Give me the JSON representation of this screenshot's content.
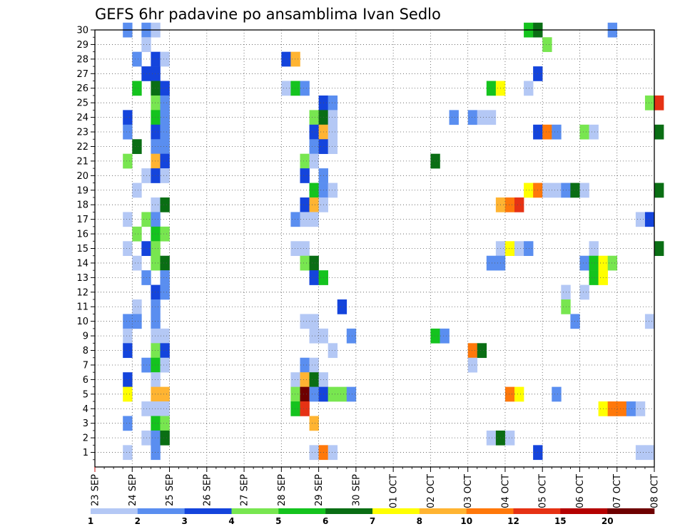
{
  "chart_data": {
    "type": "heatmap",
    "title": "GEFS 6hr padavine po ansamblima Ivan Sedlo",
    "x_tick_labels": [
      "23 SEP",
      "24 SEP",
      "25 SEP",
      "26 SEP",
      "27 SEP",
      "28 SEP",
      "29 SEP",
      "30 SEP",
      "01 OCT",
      "02 OCT",
      "03 OCT",
      "04 OCT",
      "05 OCT",
      "06 OCT",
      "07 OCT",
      "08 OCT"
    ],
    "y_tick_labels": [
      "1",
      "2",
      "3",
      "4",
      "5",
      "6",
      "7",
      "8",
      "9",
      "10",
      "11",
      "12",
      "13",
      "14",
      "15",
      "16",
      "17",
      "18",
      "19",
      "20",
      "21",
      "22",
      "23",
      "24",
      "25",
      "26",
      "27",
      "28",
      "29",
      "30"
    ],
    "y_range": [
      0,
      30
    ],
    "x_step": "6hr",
    "grid": true,
    "colorbar": {
      "labels": [
        "1",
        "2",
        "3",
        "4",
        "5",
        "6",
        "7",
        "8",
        "10",
        "12",
        "15",
        "20"
      ],
      "colors": [
        "#b4c8f5",
        "#5a8ef0",
        "#1444dc",
        "#78e650",
        "#14c31e",
        "#0a6e14",
        "#ffff00",
        "#ffb432",
        "#ff780a",
        "#e63214",
        "#b40000",
        "#6e0000"
      ]
    },
    "cells": [
      {
        "m": 30,
        "t": 3,
        "c": 2
      },
      {
        "m": 30,
        "t": 5,
        "c": 2
      },
      {
        "m": 30,
        "t": 6,
        "c": 1
      },
      {
        "m": 30,
        "t": 46,
        "c": 5
      },
      {
        "m": 30,
        "t": 47,
        "c": 6
      },
      {
        "m": 30,
        "t": 55,
        "c": 2
      },
      {
        "m": 29,
        "t": 5,
        "c": 1
      },
      {
        "m": 29,
        "t": 48,
        "c": 4
      },
      {
        "m": 28,
        "t": 4,
        "c": 2
      },
      {
        "m": 28,
        "t": 6,
        "c": 3
      },
      {
        "m": 28,
        "t": 7,
        "c": 1
      },
      {
        "m": 28,
        "t": 20,
        "c": 3
      },
      {
        "m": 28,
        "t": 21,
        "c": 8
      },
      {
        "m": 27,
        "t": 5,
        "c": 3
      },
      {
        "m": 27,
        "t": 6,
        "c": 3
      },
      {
        "m": 27,
        "t": 47,
        "c": 3
      },
      {
        "m": 26,
        "t": 4,
        "c": 5
      },
      {
        "m": 26,
        "t": 6,
        "c": 6
      },
      {
        "m": 26,
        "t": 7,
        "c": 3
      },
      {
        "m": 26,
        "t": 20,
        "c": 1
      },
      {
        "m": 26,
        "t": 21,
        "c": 5
      },
      {
        "m": 26,
        "t": 22,
        "c": 2
      },
      {
        "m": 26,
        "t": 42,
        "c": 5
      },
      {
        "m": 26,
        "t": 43,
        "c": 7
      },
      {
        "m": 26,
        "t": 46,
        "c": 1
      },
      {
        "m": 25,
        "t": 6,
        "c": 4
      },
      {
        "m": 25,
        "t": 7,
        "c": 2
      },
      {
        "m": 25,
        "t": 24,
        "c": 3
      },
      {
        "m": 25,
        "t": 25,
        "c": 2
      },
      {
        "m": 25,
        "t": 59,
        "c": 4
      },
      {
        "m": 25,
        "t": 60,
        "c": 10
      },
      {
        "m": 24,
        "t": 3,
        "c": 3
      },
      {
        "m": 24,
        "t": 6,
        "c": 5
      },
      {
        "m": 24,
        "t": 7,
        "c": 2
      },
      {
        "m": 24,
        "t": 23,
        "c": 4
      },
      {
        "m": 24,
        "t": 24,
        "c": 6
      },
      {
        "m": 24,
        "t": 25,
        "c": 1
      },
      {
        "m": 24,
        "t": 38,
        "c": 2
      },
      {
        "m": 24,
        "t": 40,
        "c": 2
      },
      {
        "m": 24,
        "t": 41,
        "c": 1
      },
      {
        "m": 24,
        "t": 42,
        "c": 1
      },
      {
        "m": 23,
        "t": 3,
        "c": 2
      },
      {
        "m": 23,
        "t": 6,
        "c": 3
      },
      {
        "m": 23,
        "t": 7,
        "c": 2
      },
      {
        "m": 23,
        "t": 23,
        "c": 3
      },
      {
        "m": 23,
        "t": 24,
        "c": 8
      },
      {
        "m": 23,
        "t": 25,
        "c": 1
      },
      {
        "m": 23,
        "t": 47,
        "c": 3
      },
      {
        "m": 23,
        "t": 48,
        "c": 9
      },
      {
        "m": 23,
        "t": 49,
        "c": 2
      },
      {
        "m": 23,
        "t": 52,
        "c": 4
      },
      {
        "m": 23,
        "t": 53,
        "c": 1
      },
      {
        "m": 23,
        "t": 60,
        "c": 6
      },
      {
        "m": 22,
        "t": 4,
        "c": 6
      },
      {
        "m": 22,
        "t": 6,
        "c": 2
      },
      {
        "m": 22,
        "t": 7,
        "c": 2
      },
      {
        "m": 22,
        "t": 23,
        "c": 2
      },
      {
        "m": 22,
        "t": 24,
        "c": 3
      },
      {
        "m": 22,
        "t": 25,
        "c": 1
      },
      {
        "m": 21,
        "t": 3,
        "c": 4
      },
      {
        "m": 21,
        "t": 6,
        "c": 8
      },
      {
        "m": 21,
        "t": 7,
        "c": 3
      },
      {
        "m": 21,
        "t": 22,
        "c": 4
      },
      {
        "m": 21,
        "t": 23,
        "c": 1
      },
      {
        "m": 21,
        "t": 36,
        "c": 6
      },
      {
        "m": 20,
        "t": 5,
        "c": 1
      },
      {
        "m": 20,
        "t": 6,
        "c": 3
      },
      {
        "m": 20,
        "t": 7,
        "c": 1
      },
      {
        "m": 20,
        "t": 22,
        "c": 3
      },
      {
        "m": 20,
        "t": 24,
        "c": 2
      },
      {
        "m": 19,
        "t": 4,
        "c": 1
      },
      {
        "m": 19,
        "t": 23,
        "c": 5
      },
      {
        "m": 19,
        "t": 24,
        "c": 2
      },
      {
        "m": 19,
        "t": 25,
        "c": 1
      },
      {
        "m": 19,
        "t": 46,
        "c": 7
      },
      {
        "m": 19,
        "t": 47,
        "c": 9
      },
      {
        "m": 19,
        "t": 48,
        "c": 1
      },
      {
        "m": 19,
        "t": 49,
        "c": 1
      },
      {
        "m": 19,
        "t": 50,
        "c": 2
      },
      {
        "m": 19,
        "t": 51,
        "c": 6
      },
      {
        "m": 19,
        "t": 52,
        "c": 1
      },
      {
        "m": 19,
        "t": 60,
        "c": 6
      },
      {
        "m": 18,
        "t": 6,
        "c": 1
      },
      {
        "m": 18,
        "t": 7,
        "c": 6
      },
      {
        "m": 18,
        "t": 22,
        "c": 3
      },
      {
        "m": 18,
        "t": 23,
        "c": 8
      },
      {
        "m": 18,
        "t": 24,
        "c": 1
      },
      {
        "m": 18,
        "t": 43,
        "c": 8
      },
      {
        "m": 18,
        "t": 44,
        "c": 9
      },
      {
        "m": 18,
        "t": 45,
        "c": 10
      },
      {
        "m": 17,
        "t": 3,
        "c": 1
      },
      {
        "m": 17,
        "t": 5,
        "c": 4
      },
      {
        "m": 17,
        "t": 6,
        "c": 2
      },
      {
        "m": 17,
        "t": 21,
        "c": 2
      },
      {
        "m": 17,
        "t": 22,
        "c": 1
      },
      {
        "m": 17,
        "t": 23,
        "c": 1
      },
      {
        "m": 17,
        "t": 58,
        "c": 1
      },
      {
        "m": 17,
        "t": 59,
        "c": 3
      },
      {
        "m": 16,
        "t": 4,
        "c": 4
      },
      {
        "m": 16,
        "t": 6,
        "c": 5
      },
      {
        "m": 16,
        "t": 7,
        "c": 4
      },
      {
        "m": 15,
        "t": 3,
        "c": 1
      },
      {
        "m": 15,
        "t": 5,
        "c": 3
      },
      {
        "m": 15,
        "t": 6,
        "c": 4
      },
      {
        "m": 15,
        "t": 21,
        "c": 1
      },
      {
        "m": 15,
        "t": 22,
        "c": 1
      },
      {
        "m": 15,
        "t": 43,
        "c": 1
      },
      {
        "m": 15,
        "t": 44,
        "c": 7
      },
      {
        "m": 15,
        "t": 45,
        "c": 1
      },
      {
        "m": 15,
        "t": 46,
        "c": 2
      },
      {
        "m": 15,
        "t": 53,
        "c": 1
      },
      {
        "m": 15,
        "t": 60,
        "c": 6
      },
      {
        "m": 14,
        "t": 4,
        "c": 1
      },
      {
        "m": 14,
        "t": 6,
        "c": 4
      },
      {
        "m": 14,
        "t": 7,
        "c": 6
      },
      {
        "m": 14,
        "t": 22,
        "c": 4
      },
      {
        "m": 14,
        "t": 23,
        "c": 6
      },
      {
        "m": 14,
        "t": 42,
        "c": 2
      },
      {
        "m": 14,
        "t": 43,
        "c": 2
      },
      {
        "m": 14,
        "t": 52,
        "c": 2
      },
      {
        "m": 14,
        "t": 53,
        "c": 5
      },
      {
        "m": 14,
        "t": 54,
        "c": 7
      },
      {
        "m": 14,
        "t": 55,
        "c": 4
      },
      {
        "m": 13,
        "t": 5,
        "c": 2
      },
      {
        "m": 13,
        "t": 7,
        "c": 2
      },
      {
        "m": 13,
        "t": 23,
        "c": 3
      },
      {
        "m": 13,
        "t": 24,
        "c": 5
      },
      {
        "m": 13,
        "t": 53,
        "c": 5
      },
      {
        "m": 13,
        "t": 54,
        "c": 7
      },
      {
        "m": 12,
        "t": 6,
        "c": 3
      },
      {
        "m": 12,
        "t": 7,
        "c": 2
      },
      {
        "m": 12,
        "t": 50,
        "c": 1
      },
      {
        "m": 12,
        "t": 52,
        "c": 1
      },
      {
        "m": 11,
        "t": 4,
        "c": 1
      },
      {
        "m": 11,
        "t": 6,
        "c": 2
      },
      {
        "m": 11,
        "t": 26,
        "c": 3
      },
      {
        "m": 11,
        "t": 50,
        "c": 4
      },
      {
        "m": 10,
        "t": 3,
        "c": 2
      },
      {
        "m": 10,
        "t": 4,
        "c": 2
      },
      {
        "m": 10,
        "t": 6,
        "c": 2
      },
      {
        "m": 10,
        "t": 22,
        "c": 1
      },
      {
        "m": 10,
        "t": 23,
        "c": 1
      },
      {
        "m": 10,
        "t": 51,
        "c": 2
      },
      {
        "m": 10,
        "t": 59,
        "c": 1
      },
      {
        "m": 9,
        "t": 3,
        "c": 1
      },
      {
        "m": 9,
        "t": 6,
        "c": 1
      },
      {
        "m": 9,
        "t": 7,
        "c": 1
      },
      {
        "m": 9,
        "t": 23,
        "c": 1
      },
      {
        "m": 9,
        "t": 24,
        "c": 1
      },
      {
        "m": 9,
        "t": 27,
        "c": 2
      },
      {
        "m": 9,
        "t": 36,
        "c": 5
      },
      {
        "m": 9,
        "t": 37,
        "c": 2
      },
      {
        "m": 8,
        "t": 3,
        "c": 3
      },
      {
        "m": 8,
        "t": 6,
        "c": 4
      },
      {
        "m": 8,
        "t": 7,
        "c": 3
      },
      {
        "m": 8,
        "t": 25,
        "c": 1
      },
      {
        "m": 8,
        "t": 40,
        "c": 9
      },
      {
        "m": 8,
        "t": 41,
        "c": 6
      },
      {
        "m": 7,
        "t": 5,
        "c": 2
      },
      {
        "m": 7,
        "t": 6,
        "c": 5
      },
      {
        "m": 7,
        "t": 7,
        "c": 1
      },
      {
        "m": 7,
        "t": 22,
        "c": 2
      },
      {
        "m": 7,
        "t": 23,
        "c": 1
      },
      {
        "m": 7,
        "t": 40,
        "c": 1
      },
      {
        "m": 6,
        "t": 3,
        "c": 3
      },
      {
        "m": 6,
        "t": 6,
        "c": 1
      },
      {
        "m": 6,
        "t": 21,
        "c": 1
      },
      {
        "m": 6,
        "t": 22,
        "c": 8
      },
      {
        "m": 6,
        "t": 23,
        "c": 6
      },
      {
        "m": 6,
        "t": 24,
        "c": 1
      },
      {
        "m": 5,
        "t": 3,
        "c": 7
      },
      {
        "m": 5,
        "t": 6,
        "c": 8
      },
      {
        "m": 5,
        "t": 7,
        "c": 8
      },
      {
        "m": 5,
        "t": 21,
        "c": 4
      },
      {
        "m": 5,
        "t": 22,
        "c": 12
      },
      {
        "m": 5,
        "t": 23,
        "c": 2
      },
      {
        "m": 5,
        "t": 24,
        "c": 3
      },
      {
        "m": 5,
        "t": 25,
        "c": 4
      },
      {
        "m": 5,
        "t": 26,
        "c": 4
      },
      {
        "m": 5,
        "t": 27,
        "c": 2
      },
      {
        "m": 5,
        "t": 44,
        "c": 9
      },
      {
        "m": 5,
        "t": 45,
        "c": 7
      },
      {
        "m": 5,
        "t": 49,
        "c": 2
      },
      {
        "m": 4,
        "t": 5,
        "c": 1
      },
      {
        "m": 4,
        "t": 6,
        "c": 1
      },
      {
        "m": 4,
        "t": 7,
        "c": 1
      },
      {
        "m": 4,
        "t": 21,
        "c": 5
      },
      {
        "m": 4,
        "t": 22,
        "c": 10
      },
      {
        "m": 4,
        "t": 54,
        "c": 7
      },
      {
        "m": 4,
        "t": 55,
        "c": 9
      },
      {
        "m": 4,
        "t": 56,
        "c": 9
      },
      {
        "m": 4,
        "t": 57,
        "c": 2
      },
      {
        "m": 4,
        "t": 58,
        "c": 1
      },
      {
        "m": 3,
        "t": 3,
        "c": 2
      },
      {
        "m": 3,
        "t": 6,
        "c": 5
      },
      {
        "m": 3,
        "t": 7,
        "c": 4
      },
      {
        "m": 3,
        "t": 23,
        "c": 8
      },
      {
        "m": 2,
        "t": 5,
        "c": 1
      },
      {
        "m": 2,
        "t": 6,
        "c": 2
      },
      {
        "m": 2,
        "t": 7,
        "c": 6
      },
      {
        "m": 2,
        "t": 42,
        "c": 1
      },
      {
        "m": 2,
        "t": 43,
        "c": 6
      },
      {
        "m": 2,
        "t": 44,
        "c": 1
      },
      {
        "m": 1,
        "t": 3,
        "c": 1
      },
      {
        "m": 1,
        "t": 6,
        "c": 2
      },
      {
        "m": 1,
        "t": 23,
        "c": 1
      },
      {
        "m": 1,
        "t": 24,
        "c": 9
      },
      {
        "m": 1,
        "t": 25,
        "c": 1
      },
      {
        "m": 1,
        "t": 47,
        "c": 3
      },
      {
        "m": 1,
        "t": 58,
        "c": 1
      },
      {
        "m": 1,
        "t": 59,
        "c": 1
      }
    ]
  }
}
